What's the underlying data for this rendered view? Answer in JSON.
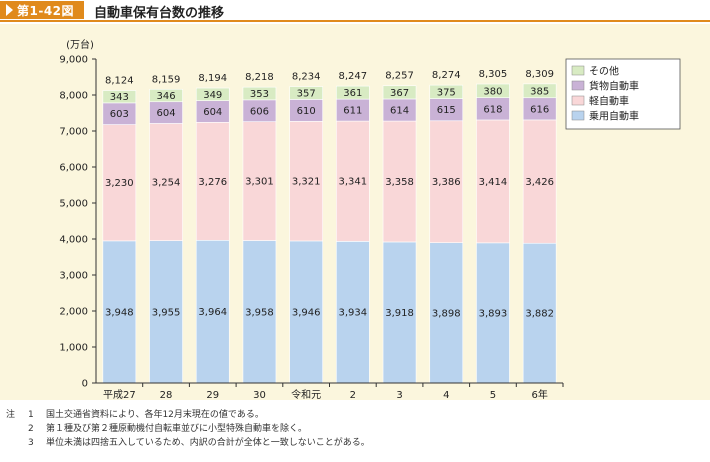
{
  "figure": {
    "number": "第1-42図",
    "title": "自動車保有台数の推移"
  },
  "colors": {
    "header_accent": "#e08a1c",
    "panel_bg": "#fbf6dd"
  },
  "chart_data": {
    "type": "bar",
    "stacked": true,
    "ylabel": "(万台)",
    "ylim": [
      0,
      9000
    ],
    "yticks": [
      "0",
      "1,000",
      "2,000",
      "3,000",
      "4,000",
      "5,000",
      "6,000",
      "7,000",
      "8,000",
      "9,000"
    ],
    "ytick_values": [
      0,
      1000,
      2000,
      3000,
      4000,
      5000,
      6000,
      7000,
      8000,
      9000
    ],
    "categories": [
      "平成27",
      "28",
      "29",
      "30",
      "令和元",
      "2",
      "3",
      "4",
      "5",
      "6年"
    ],
    "totals": [
      "8,124",
      "8,159",
      "8,194",
      "8,218",
      "8,234",
      "8,247",
      "8,257",
      "8,274",
      "8,305",
      "8,309"
    ],
    "series": [
      {
        "name": "乗用自動車",
        "color": "#b9d3ee",
        "values": [
          3948,
          3955,
          3964,
          3958,
          3946,
          3934,
          3918,
          3898,
          3893,
          3882
        ],
        "labels": [
          "3,948",
          "3,955",
          "3,964",
          "3,958",
          "3,946",
          "3,934",
          "3,918",
          "3,898",
          "3,893",
          "3,882"
        ]
      },
      {
        "name": "軽自動車",
        "color": "#f9d7d8",
        "values": [
          3230,
          3254,
          3276,
          3301,
          3321,
          3341,
          3358,
          3386,
          3414,
          3426
        ],
        "labels": [
          "3,230",
          "3,254",
          "3,276",
          "3,301",
          "3,321",
          "3,341",
          "3,358",
          "3,386",
          "3,414",
          "3,426"
        ]
      },
      {
        "name": "貨物自動車",
        "color": "#c9b2d6",
        "values": [
          603,
          604,
          604,
          606,
          610,
          611,
          614,
          615,
          618,
          616
        ],
        "labels": [
          "603",
          "604",
          "604",
          "606",
          "610",
          "611",
          "614",
          "615",
          "618",
          "616"
        ]
      },
      {
        "name": "その他",
        "color": "#d8ebc3",
        "values": [
          343,
          346,
          349,
          353,
          357,
          361,
          367,
          375,
          380,
          385
        ],
        "labels": [
          "343",
          "346",
          "349",
          "353",
          "357",
          "361",
          "367",
          "375",
          "380",
          "385"
        ]
      }
    ],
    "legend_order": [
      "その他",
      "貨物自動車",
      "軽自動車",
      "乗用自動車"
    ],
    "legend_position": "top-right",
    "grid": false
  },
  "notes": {
    "head": "注",
    "items": [
      {
        "num": "1",
        "text": "国土交通省資料により、各年12月末現在の値である。"
      },
      {
        "num": "2",
        "text": "第１種及び第２種原動機付自転車並びに小型特殊自動車を除く。"
      },
      {
        "num": "3",
        "text": "単位未満は四捨五入しているため、内訳の合計が全体と一致しないことがある。"
      }
    ]
  }
}
